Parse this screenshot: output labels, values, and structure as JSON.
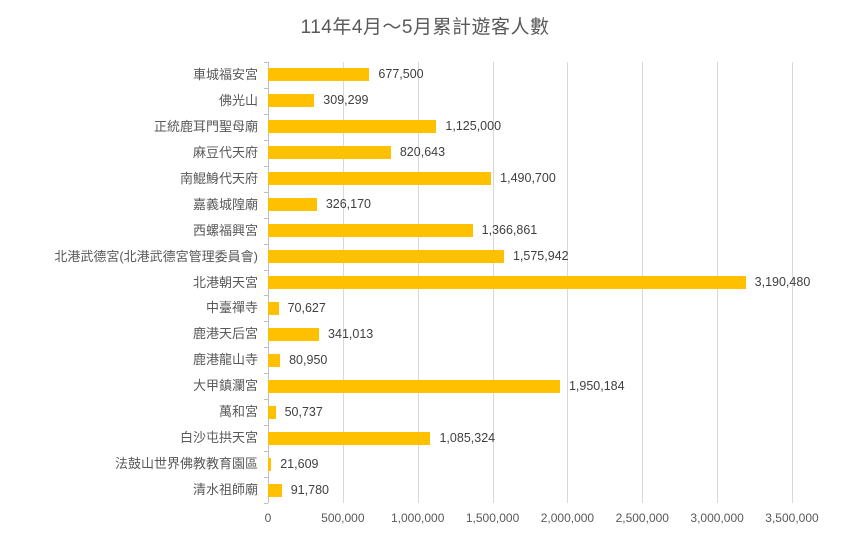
{
  "chart_data": {
    "type": "bar",
    "orientation": "horizontal",
    "title": "114年4月～5月累計遊客人數",
    "categories": [
      "車城福安宮",
      "佛光山",
      "正統鹿耳門聖母廟",
      "麻豆代天府",
      "南鯤鯓代天府",
      "嘉義城隍廟",
      "西螺福興宮",
      "北港武德宮(北港武德宮管理委員會)",
      "北港朝天宮",
      "中臺禪寺",
      "鹿港天后宮",
      "鹿港龍山寺",
      "大甲鎮瀾宮",
      "萬和宮",
      "白沙屯拱天宮",
      "法鼓山世界佛教教育園區",
      "清水祖師廟"
    ],
    "values": [
      677500,
      309299,
      1125000,
      820643,
      1490700,
      326170,
      1366861,
      1575942,
      3190480,
      70627,
      341013,
      80950,
      1950184,
      50737,
      1085324,
      21609,
      91780
    ],
    "value_labels": [
      "677,500",
      "309,299",
      "1,125,000",
      "820,643",
      "1,490,700",
      "326,170",
      "1,366,861",
      "1,575,942",
      "3,190,480",
      "70,627",
      "341,013",
      "80,950",
      "1,950,184",
      "50,737",
      "1,085,324",
      "21,609",
      "91,780"
    ],
    "xlabel": "",
    "ylabel": "",
    "xlim": [
      0,
      3500000
    ],
    "x_tick_values": [
      0,
      500000,
      1000000,
      1500000,
      2000000,
      2500000,
      3000000,
      3500000
    ],
    "x_tick_labels": [
      "0",
      "500,000",
      "1,000,000",
      "1,500,000",
      "2,000,000",
      "2,500,000",
      "3,000,000",
      "3,500,000"
    ],
    "grid": true,
    "legend": "none",
    "colors": {
      "bar": "#FFC000",
      "gridline": "#D9D9D9",
      "axis_line": "#BFBFBF",
      "category_label": "#595959",
      "value_label": "#404040",
      "title": "#595959",
      "background": "#FFFFFF"
    }
  }
}
